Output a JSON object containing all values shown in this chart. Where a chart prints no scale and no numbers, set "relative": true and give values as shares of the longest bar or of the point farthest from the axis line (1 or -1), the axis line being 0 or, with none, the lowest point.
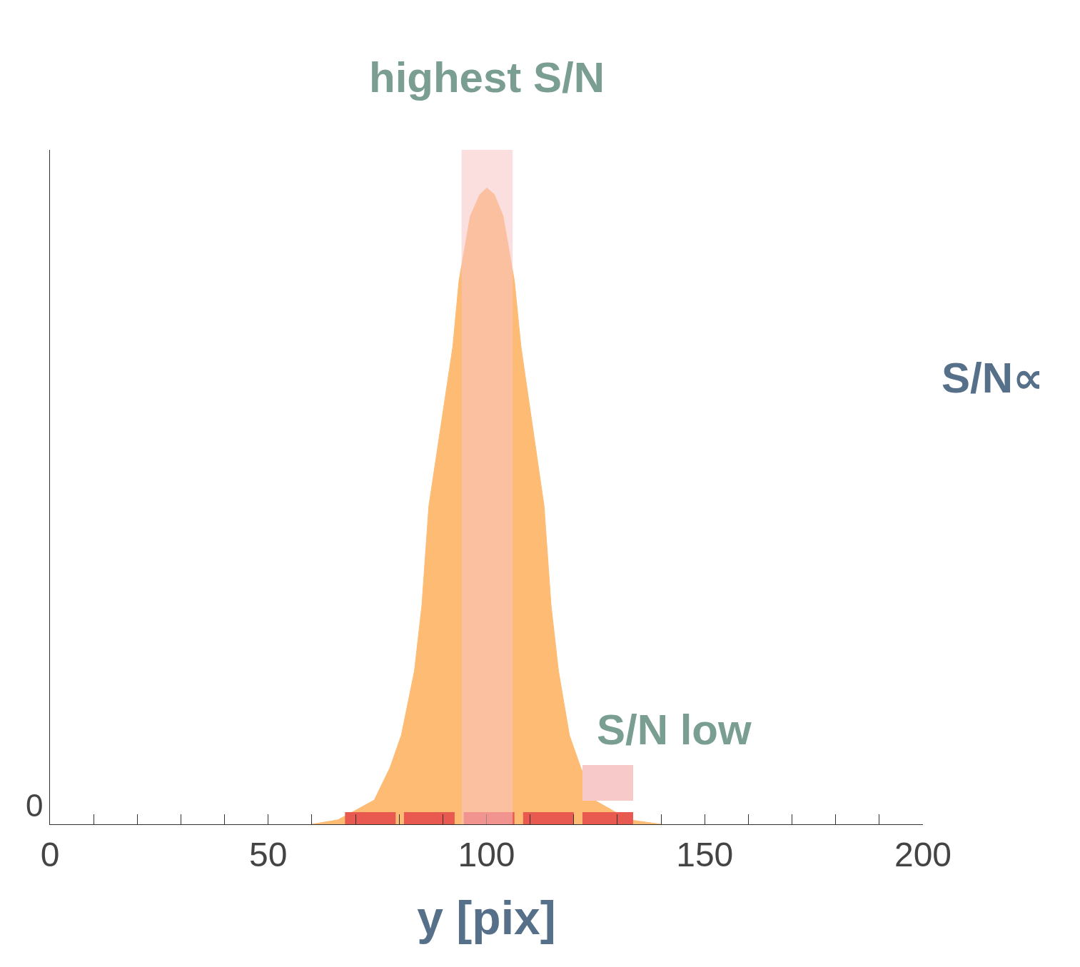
{
  "chart_data": {
    "type": "area",
    "relative": true,
    "xlabel": "y [pix]",
    "xlim": [
      0,
      200
    ],
    "xticks": [
      0,
      {
        "value": 10,
        "label": null
      },
      {
        "value": 20,
        "label": null
      },
      {
        "value": 30,
        "label": null
      },
      {
        "value": 40,
        "label": null
      },
      50,
      {
        "value": 60,
        "label": null
      },
      {
        "value": 70,
        "label": null
      },
      {
        "value": 80,
        "label": null
      },
      {
        "value": 90,
        "label": null
      },
      100,
      {
        "value": 110,
        "label": null
      },
      {
        "value": 120,
        "label": null
      },
      {
        "value": 130,
        "label": null
      },
      {
        "value": 140,
        "label": null
      },
      150,
      {
        "value": 160,
        "label": null
      },
      {
        "value": 170,
        "label": null
      },
      {
        "value": 180,
        "label": null
      },
      {
        "value": 190,
        "label": null
      },
      200
    ],
    "series": [
      {
        "color": "#fdbb74",
        "x": [
          60,
          66,
          74.3,
          77.9,
          80.5,
          83.5,
          85.2,
          86.8,
          92.3,
          93.7,
          96.3,
          98.5,
          100.1,
          101.8,
          103.8,
          106.4,
          107.9,
          113.2,
          114.8,
          116.5,
          119,
          121.6,
          124.7,
          132.7,
          140
        ],
        "values": [
          0,
          0.007,
          0.038,
          0.089,
          0.14,
          0.241,
          0.344,
          0.5,
          0.751,
          0.854,
          0.956,
          0.99,
          1,
          0.99,
          0.956,
          0.854,
          0.751,
          0.5,
          0.344,
          0.241,
          0.14,
          0.089,
          0.038,
          0.007,
          0
        ]
      },
      {
        "type": "bar",
        "color": "#e85a50",
        "x": [
          73.4,
          86.9,
          100.6,
          114.2,
          127.8
        ],
        "values": [
          0.019,
          0.019,
          0.019,
          0.019,
          0.019
        ]
      }
    ],
    "bands": [
      {
        "axis": "x",
        "from": 94.3,
        "to": 106,
        "label": "highest S/N",
        "color": "#f8c4c4"
      }
    ],
    "annotations": [
      {
        "text": "S/N low",
        "x": 127.8,
        "y": 0.019
      },
      "0",
      "S/N∝"
    ],
    "grid": false
  }
}
